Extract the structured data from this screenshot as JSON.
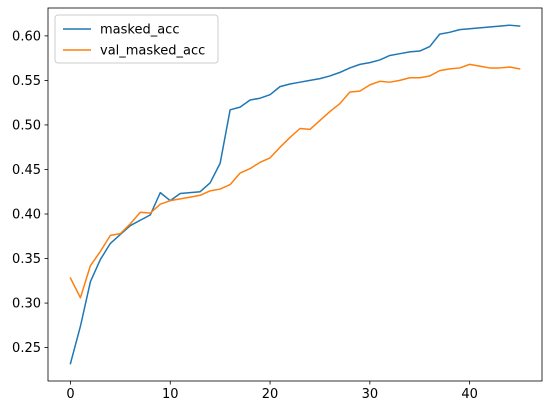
{
  "chart_data": {
    "type": "line",
    "title": "",
    "xlabel": "",
    "ylabel": "",
    "xlim": [
      -2.25,
      47.25
    ],
    "ylim": [
      0.2125,
      0.6313
    ],
    "xticks": [
      0,
      10,
      20,
      30,
      40
    ],
    "yticks": [
      0.25,
      0.3,
      0.35,
      0.4,
      0.45,
      0.5,
      0.55,
      0.6
    ],
    "grid": false,
    "legend_position": "upper-left",
    "series": [
      {
        "name": "masked_acc",
        "color": "#1f77b4",
        "values": [
          0.232,
          0.274,
          0.324,
          0.349,
          0.367,
          0.377,
          0.387,
          0.393,
          0.399,
          0.424,
          0.415,
          0.423,
          0.424,
          0.425,
          0.435,
          0.457,
          0.517,
          0.52,
          0.528,
          0.53,
          0.534,
          0.543,
          0.546,
          0.548,
          0.55,
          0.552,
          0.555,
          0.559,
          0.564,
          0.568,
          0.57,
          0.573,
          0.578,
          0.58,
          0.582,
          0.583,
          0.588,
          0.602,
          0.604,
          0.607,
          0.608,
          0.609,
          0.61,
          0.611,
          0.612,
          0.611
        ]
      },
      {
        "name": "val_masked_acc",
        "color": "#ff7f0e",
        "values": [
          0.328,
          0.306,
          0.342,
          0.358,
          0.376,
          0.378,
          0.389,
          0.402,
          0.401,
          0.411,
          0.415,
          0.417,
          0.419,
          0.421,
          0.426,
          0.428,
          0.433,
          0.446,
          0.451,
          0.458,
          0.463,
          0.475,
          0.486,
          0.496,
          0.495,
          0.505,
          0.515,
          0.524,
          0.537,
          0.538,
          0.545,
          0.549,
          0.548,
          0.55,
          0.553,
          0.553,
          0.555,
          0.561,
          0.563,
          0.564,
          0.568,
          0.566,
          0.564,
          0.564,
          0.565,
          0.563
        ]
      }
    ]
  }
}
